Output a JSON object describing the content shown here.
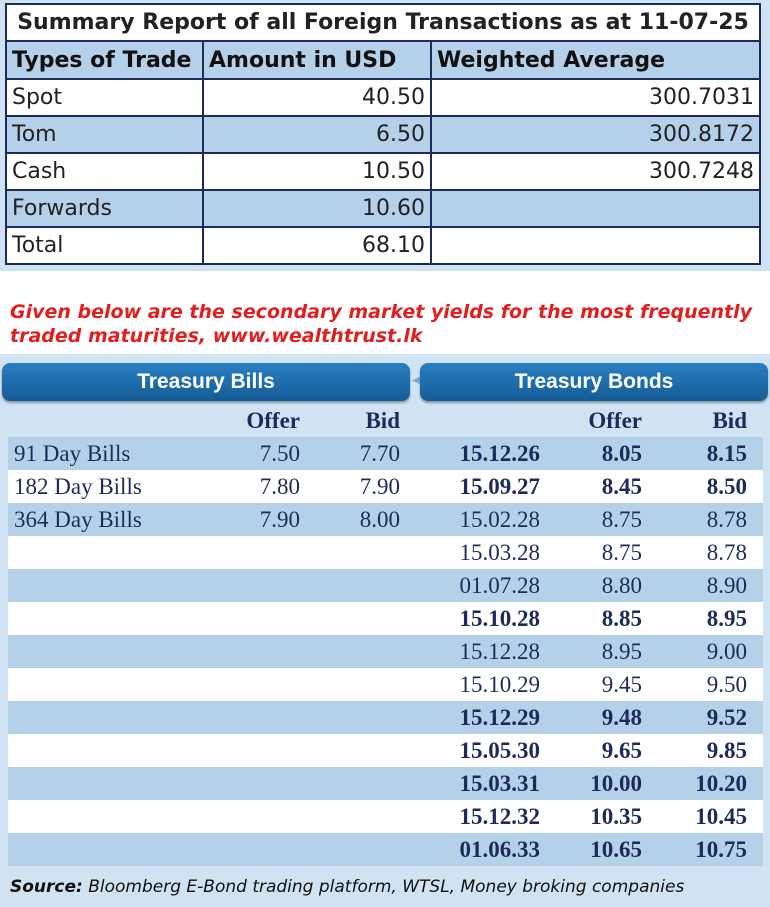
{
  "fx_summary": {
    "title": "Summary Report of all Foreign Transactions as at 11-07-25",
    "headers": [
      "Types of Trade",
      "Amount in USD",
      "Weighted Average"
    ],
    "rows": [
      {
        "type": "Spot",
        "amount": "40.50",
        "avg": "300.7031"
      },
      {
        "type": "Tom",
        "amount": "6.50",
        "avg": "300.8172"
      },
      {
        "type": "Cash",
        "amount": "10.50",
        "avg": "300.7248"
      },
      {
        "type": "Forwards",
        "amount": "10.60",
        "avg": ""
      },
      {
        "type": "Total",
        "amount": "68.10",
        "avg": ""
      }
    ]
  },
  "intro": {
    "text": "Given below are the secondary market yields for the most frequently traded maturities, www.wealthtrust.lk"
  },
  "yields": {
    "bills_title": "Treasury Bills",
    "bonds_title": "Treasury Bonds",
    "col_offer": "Offer",
    "col_bid": "Bid",
    "bills": [
      {
        "name": "91 Day Bills",
        "offer": "7.50",
        "bid": "7.70"
      },
      {
        "name": "182 Day Bills",
        "offer": "7.80",
        "bid": "7.90"
      },
      {
        "name": "364 Day Bills",
        "offer": "7.90",
        "bid": "8.00"
      }
    ],
    "bonds": [
      {
        "maturity": "15.12.26",
        "offer": "8.05",
        "bid": "8.15",
        "bold": true
      },
      {
        "maturity": "15.09.27",
        "offer": "8.45",
        "bid": "8.50",
        "bold": true
      },
      {
        "maturity": "15.02.28",
        "offer": "8.75",
        "bid": "8.78",
        "bold": false
      },
      {
        "maturity": "15.03.28",
        "offer": "8.75",
        "bid": "8.78",
        "bold": false
      },
      {
        "maturity": "01.07.28",
        "offer": "8.80",
        "bid": "8.90",
        "bold": false
      },
      {
        "maturity": "15.10.28",
        "offer": "8.85",
        "bid": "8.95",
        "bold": true
      },
      {
        "maturity": "15.12.28",
        "offer": "8.95",
        "bid": "9.00",
        "bold": false
      },
      {
        "maturity": "15.10.29",
        "offer": "9.45",
        "bid": "9.50",
        "bold": false
      },
      {
        "maturity": "15.12.29",
        "offer": "9.48",
        "bid": "9.52",
        "bold": true
      },
      {
        "maturity": "15.05.30",
        "offer": "9.65",
        "bid": "9.85",
        "bold": true
      },
      {
        "maturity": "15.03.31",
        "offer": "10.00",
        "bid": "10.20",
        "bold": true
      },
      {
        "maturity": "15.12.32",
        "offer": "10.35",
        "bid": "10.45",
        "bold": true
      },
      {
        "maturity": "01.06.33",
        "offer": "10.65",
        "bid": "10.75",
        "bold": true
      }
    ]
  },
  "source": {
    "label": "Source:",
    "text": " Bloomberg E-Bond trading platform, WTSL, Money broking companies"
  }
}
